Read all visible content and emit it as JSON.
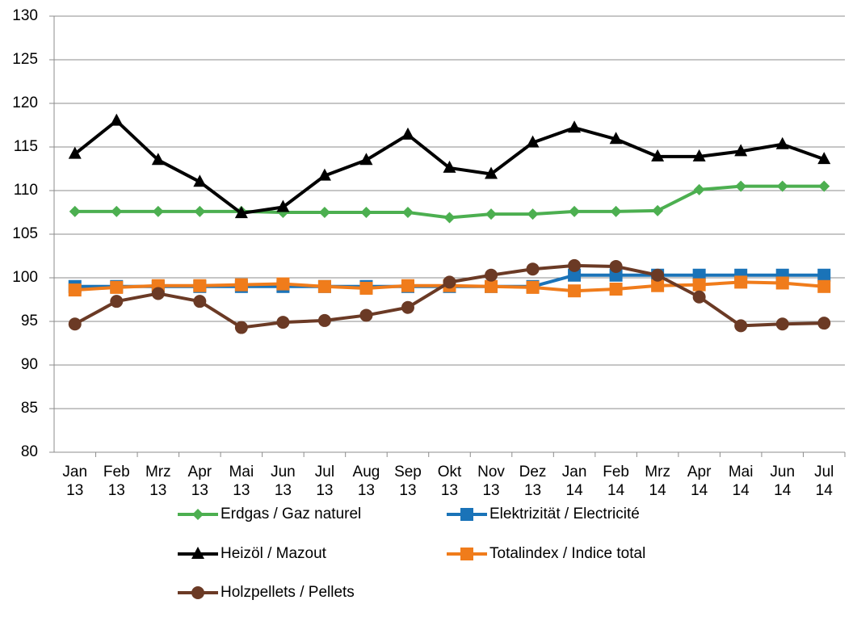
{
  "chart_data": {
    "type": "line",
    "categories": [
      "Jan 13",
      "Feb 13",
      "Mrz 13",
      "Apr 13",
      "Mai 13",
      "Jun 13",
      "Jul 13",
      "Aug 13",
      "Sep 13",
      "Okt 13",
      "Nov 13",
      "Dez 13",
      "Jan 14",
      "Feb 14",
      "Mrz 14",
      "Apr 14",
      "Mai 14",
      "Jun 14",
      "Jul 14"
    ],
    "series": [
      {
        "name": "Erdgas / Gaz naturel",
        "color": "#4caf50",
        "marker": "diamond",
        "values": [
          107.6,
          107.6,
          107.6,
          107.6,
          107.6,
          107.5,
          107.5,
          107.5,
          107.5,
          106.9,
          107.3,
          107.3,
          107.6,
          107.6,
          107.7,
          110.1,
          110.5,
          110.5,
          110.5
        ]
      },
      {
        "name": "Elektrizität / Electricité",
        "color": "#1a73b8",
        "marker": "square",
        "values": [
          99,
          99,
          99,
          99,
          99,
          99,
          99,
          99,
          99,
          99,
          99,
          99,
          100.3,
          100.3,
          100.3,
          100.3,
          100.3,
          100.3,
          100.3
        ]
      },
      {
        "name": "Heizöl / Mazout",
        "color": "#000000",
        "marker": "triangle",
        "values": [
          114.2,
          118,
          113.5,
          111,
          107.4,
          108.1,
          111.7,
          113.5,
          116.4,
          112.6,
          111.9,
          115.5,
          117.2,
          115.9,
          113.9,
          113.9,
          114.5,
          115.3,
          113.6
        ]
      },
      {
        "name": "Totalindex / Indice total",
        "color": "#f07c1b",
        "marker": "square",
        "values": [
          98.6,
          98.9,
          99.1,
          99.1,
          99.2,
          99.3,
          99,
          98.8,
          99.1,
          99.1,
          99,
          98.9,
          98.5,
          98.7,
          99.1,
          99.2,
          99.5,
          99.4,
          99.0
        ]
      },
      {
        "name": "Holzpellets / Pellets",
        "color": "#6b3a25",
        "marker": "circle",
        "values": [
          94.7,
          97.3,
          98.2,
          97.3,
          94.3,
          94.9,
          95.1,
          95.7,
          96.6,
          99.5,
          100.3,
          101,
          101.4,
          101.3,
          100.3,
          97.8,
          94.5,
          94.7,
          94.8
        ]
      }
    ],
    "ylim": [
      80,
      130
    ],
    "yticks": [
      80,
      85,
      90,
      95,
      100,
      105,
      110,
      115,
      120,
      125,
      130
    ],
    "grid": true
  }
}
